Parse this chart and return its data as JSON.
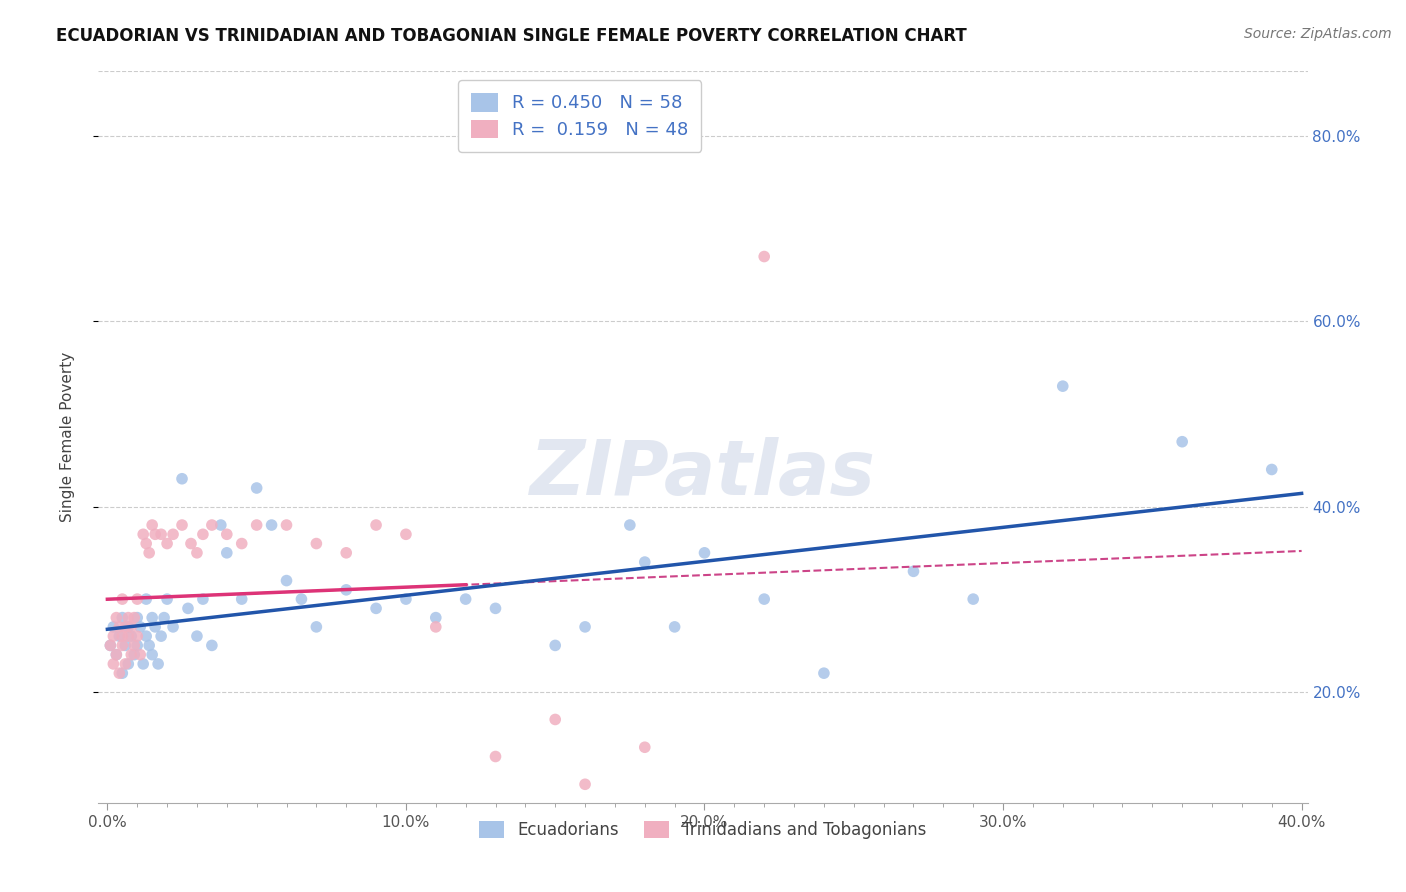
{
  "title": "ECUADORIAN VS TRINIDADIAN AND TOBAGONIAN SINGLE FEMALE POVERTY CORRELATION CHART",
  "source": "Source: ZipAtlas.com",
  "ylabel": "Single Female Poverty",
  "xlim": [
    -0.003,
    0.402
  ],
  "ylim": [
    0.08,
    0.87
  ],
  "xtick_labels": [
    "0.0%",
    "",
    "",
    "",
    "",
    "",
    "",
    "",
    "",
    "",
    "10.0%",
    "",
    "",
    "",
    "",
    "",
    "",
    "",
    "",
    "",
    "20.0%",
    "",
    "",
    "",
    "",
    "",
    "",
    "",
    "",
    "",
    "30.0%",
    "",
    "",
    "",
    "",
    "",
    "",
    "",
    "",
    "",
    "40.0%"
  ],
  "xtick_vals": [
    0.0,
    0.01,
    0.02,
    0.03,
    0.04,
    0.05,
    0.06,
    0.07,
    0.08,
    0.09,
    0.1,
    0.11,
    0.12,
    0.13,
    0.14,
    0.15,
    0.16,
    0.17,
    0.18,
    0.19,
    0.2,
    0.21,
    0.22,
    0.23,
    0.24,
    0.25,
    0.26,
    0.27,
    0.28,
    0.29,
    0.3,
    0.31,
    0.32,
    0.33,
    0.34,
    0.35,
    0.36,
    0.37,
    0.38,
    0.39,
    0.4
  ],
  "ytick_vals": [
    0.2,
    0.4,
    0.6,
    0.8
  ],
  "ytick_labels": [
    "20.0%",
    "40.0%",
    "60.0%",
    "80.0%"
  ],
  "color_blue": "#a8c4e8",
  "color_pink": "#f0afc0",
  "line_blue": "#2255aa",
  "line_pink": "#dd3377",
  "line_pink_dash": "#cc4488",
  "watermark": "ZIPatlas",
  "blue_scatter_x": [
    0.001,
    0.002,
    0.003,
    0.004,
    0.005,
    0.005,
    0.006,
    0.007,
    0.007,
    0.008,
    0.009,
    0.01,
    0.01,
    0.011,
    0.012,
    0.013,
    0.013,
    0.014,
    0.015,
    0.015,
    0.016,
    0.017,
    0.018,
    0.019,
    0.02,
    0.022,
    0.025,
    0.027,
    0.03,
    0.032,
    0.035,
    0.038,
    0.04,
    0.045,
    0.05,
    0.055,
    0.06,
    0.065,
    0.07,
    0.08,
    0.09,
    0.1,
    0.11,
    0.12,
    0.13,
    0.15,
    0.16,
    0.175,
    0.18,
    0.19,
    0.2,
    0.22,
    0.24,
    0.27,
    0.29,
    0.32,
    0.36,
    0.39
  ],
  "blue_scatter_y": [
    0.25,
    0.27,
    0.24,
    0.26,
    0.22,
    0.28,
    0.25,
    0.23,
    0.27,
    0.26,
    0.24,
    0.28,
    0.25,
    0.27,
    0.23,
    0.26,
    0.3,
    0.25,
    0.28,
    0.24,
    0.27,
    0.23,
    0.26,
    0.28,
    0.3,
    0.27,
    0.43,
    0.29,
    0.26,
    0.3,
    0.25,
    0.38,
    0.35,
    0.3,
    0.42,
    0.38,
    0.32,
    0.3,
    0.27,
    0.31,
    0.29,
    0.3,
    0.28,
    0.3,
    0.29,
    0.25,
    0.27,
    0.38,
    0.34,
    0.27,
    0.35,
    0.3,
    0.22,
    0.33,
    0.3,
    0.53,
    0.47,
    0.44
  ],
  "pink_scatter_x": [
    0.001,
    0.002,
    0.002,
    0.003,
    0.003,
    0.004,
    0.004,
    0.005,
    0.005,
    0.005,
    0.006,
    0.006,
    0.007,
    0.007,
    0.008,
    0.008,
    0.009,
    0.009,
    0.01,
    0.01,
    0.011,
    0.012,
    0.013,
    0.014,
    0.015,
    0.016,
    0.018,
    0.02,
    0.022,
    0.025,
    0.028,
    0.03,
    0.032,
    0.035,
    0.04,
    0.045,
    0.05,
    0.06,
    0.07,
    0.08,
    0.09,
    0.1,
    0.11,
    0.13,
    0.15,
    0.16,
    0.18,
    0.22
  ],
  "pink_scatter_y": [
    0.25,
    0.26,
    0.23,
    0.28,
    0.24,
    0.27,
    0.22,
    0.26,
    0.3,
    0.25,
    0.27,
    0.23,
    0.26,
    0.28,
    0.24,
    0.27,
    0.25,
    0.28,
    0.26,
    0.3,
    0.24,
    0.37,
    0.36,
    0.35,
    0.38,
    0.37,
    0.37,
    0.36,
    0.37,
    0.38,
    0.36,
    0.35,
    0.37,
    0.38,
    0.37,
    0.36,
    0.38,
    0.38,
    0.36,
    0.35,
    0.38,
    0.37,
    0.27,
    0.13,
    0.17,
    0.1,
    0.14,
    0.67
  ]
}
